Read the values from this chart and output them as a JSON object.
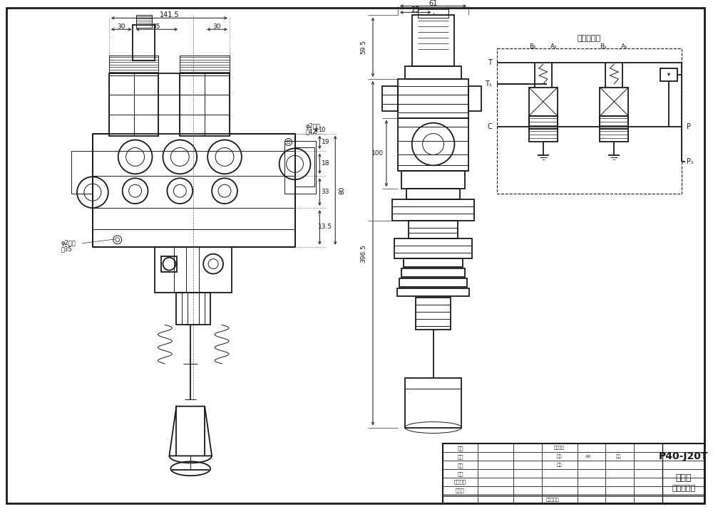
{
  "bg_color": "#ffffff",
  "line_color": "#1a1a1a",
  "dim_color": "#333333",
  "schematic_title": "液压原理图",
  "part_number": "P40-J20T",
  "drawing_title_cn": "多路阀",
  "drawing_subtitle_cn": "外形尺寸图",
  "note1": "φ2屔孔",
  "note1v": "高42",
  "note2": "φ2屔孔",
  "note2v": "高35"
}
